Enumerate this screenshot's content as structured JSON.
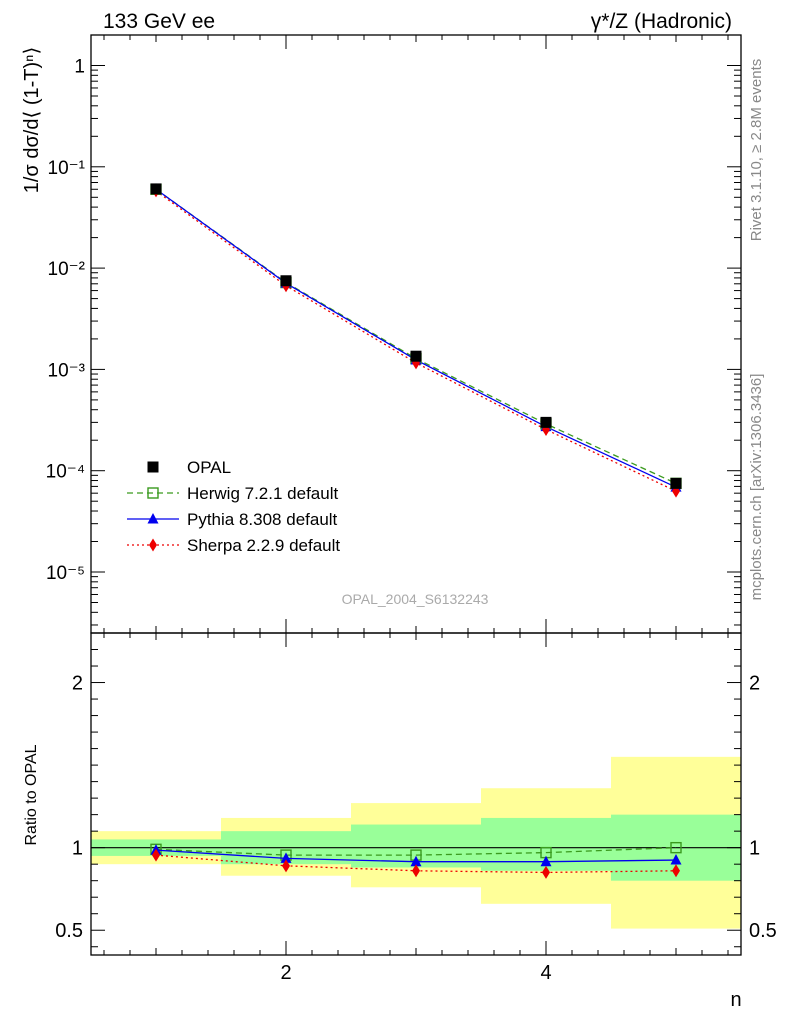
{
  "header": {
    "left": "133 GeV ee",
    "right": "γ*/Z (Hadronic)"
  },
  "side_labels": {
    "rivet": "Rivet 3.1.10, ≥ 2.8M events",
    "mcplots": "mcplots.cern.ch [arXiv:1306.3436]"
  },
  "watermark": "OPAL_2004_S6132243",
  "chart_data": [
    {
      "type": "line",
      "panel": "main",
      "ylabel": "1/σ dσ/d⟨ (1-T)ⁿ⟩",
      "xlabel": "",
      "yscale": "log",
      "xlim": [
        0.5,
        5.5
      ],
      "ylim": [
        2.5e-06,
        2
      ],
      "yticks": [
        "1",
        "10⁻¹",
        "10⁻²",
        "10⁻³",
        "10⁻⁴",
        "10⁻⁵"
      ],
      "x": [
        1,
        2,
        3,
        4,
        5
      ],
      "series": [
        {
          "name": "OPAL",
          "style": "data",
          "color": "#000000",
          "marker": "filled-square",
          "values": [
            0.0605,
            0.0075,
            0.00135,
            0.0003,
            7.5e-05
          ]
        },
        {
          "name": "Herwig 7.2.1 default",
          "style": "dashed",
          "color": "#3a9a1e",
          "marker": "open-square",
          "values": [
            0.06,
            0.0072,
            0.00128,
            0.00029,
            7.5e-05
          ]
        },
        {
          "name": "Pythia 8.308 default",
          "style": "solid",
          "color": "#0000ee",
          "marker": "filled-triangle",
          "values": [
            0.06,
            0.0071,
            0.00124,
            0.000272,
            6.88e-05
          ]
        },
        {
          "name": "Sherpa 2.2.9 default",
          "style": "dotted",
          "color": "#ee0000",
          "marker": "filled-diamond",
          "values": [
            0.0578,
            0.0067,
            0.00116,
            0.000255,
            6.28e-05
          ]
        }
      ],
      "legend_placement": "bottom-left"
    },
    {
      "type": "line",
      "panel": "ratio",
      "ylabel": "Ratio to OPAL",
      "xlabel": "n",
      "ylim": [
        0.35,
        2.3
      ],
      "yticks": [
        "0.5",
        "1",
        "2"
      ],
      "xticks": [
        "2",
        "4"
      ],
      "x": [
        1,
        2,
        3,
        4,
        5
      ],
      "bands": {
        "x_edges": [
          0.5,
          1.5,
          2.5,
          3.5,
          4.5,
          5.5
        ],
        "green_low": [
          0.95,
          0.9,
          0.88,
          0.86,
          0.8
        ],
        "green_high": [
          1.05,
          1.1,
          1.14,
          1.18,
          1.2
        ],
        "yellow_low": [
          0.9,
          0.83,
          0.76,
          0.66,
          0.51
        ],
        "yellow_high": [
          1.1,
          1.18,
          1.27,
          1.36,
          1.55
        ],
        "green_color": "#99ff99",
        "yellow_color": "#ffff99"
      },
      "series": [
        {
          "name": "Herwig 7.2.1 default",
          "style": "dashed",
          "color": "#3a9a1e",
          "marker": "open-square",
          "values": [
            0.99,
            0.955,
            0.955,
            0.97,
            1.0
          ]
        },
        {
          "name": "Pythia 8.308 default",
          "style": "solid",
          "color": "#0000ee",
          "marker": "filled-triangle",
          "values": [
            0.985,
            0.935,
            0.915,
            0.915,
            0.925
          ]
        },
        {
          "name": "Sherpa 2.2.9 default",
          "style": "dotted",
          "color": "#ee0000",
          "marker": "filled-diamond",
          "values": [
            0.955,
            0.89,
            0.86,
            0.85,
            0.86
          ]
        }
      ]
    }
  ]
}
